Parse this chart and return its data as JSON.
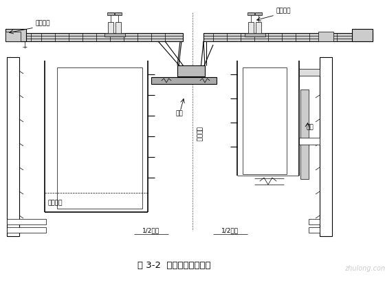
{
  "title": "图 3-2  圆端形翻模总装图",
  "bg_color": "#ffffff",
  "line_color": "#000000",
  "label_zuoyepingtai": "作业平台",
  "label_tishengxitong": "提升系统",
  "label_dijia": "吊架",
  "label_mban": "模板",
  "label_zhongxin": "截中心截",
  "label_duntaiding": "盖台顶面",
  "label_half_bottom": "1/2墩底",
  "label_half_top": "1/2墩顶",
  "watermark": "zhulong.com"
}
